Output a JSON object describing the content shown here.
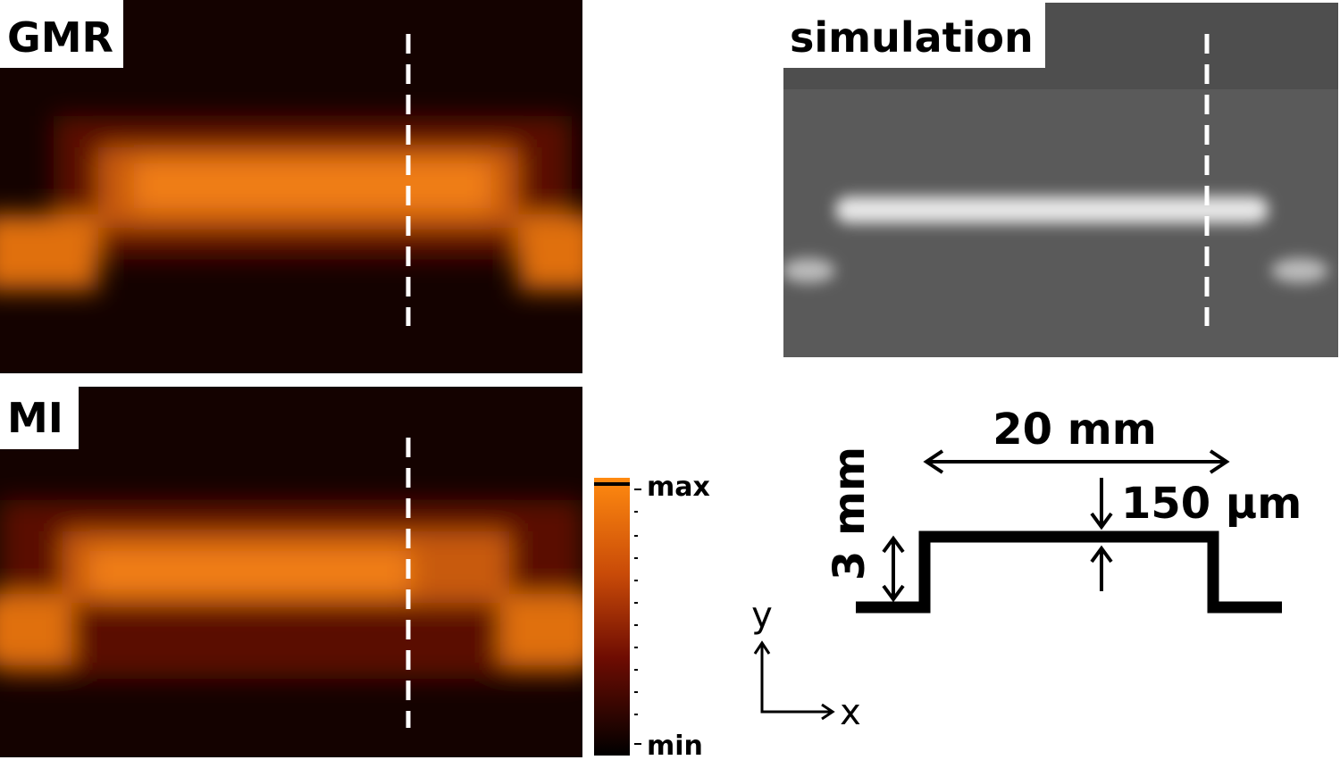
{
  "panels": [
    {
      "label": "GMR"
    },
    {
      "label": "simulation"
    },
    {
      "label": "MI"
    }
  ],
  "colorbar": {
    "max": "max",
    "min": "min"
  },
  "schematic": {
    "width": "20 mm",
    "thickness": "150 µm",
    "height": "3 mm"
  },
  "axes": {
    "y": "y",
    "x": "x"
  }
}
